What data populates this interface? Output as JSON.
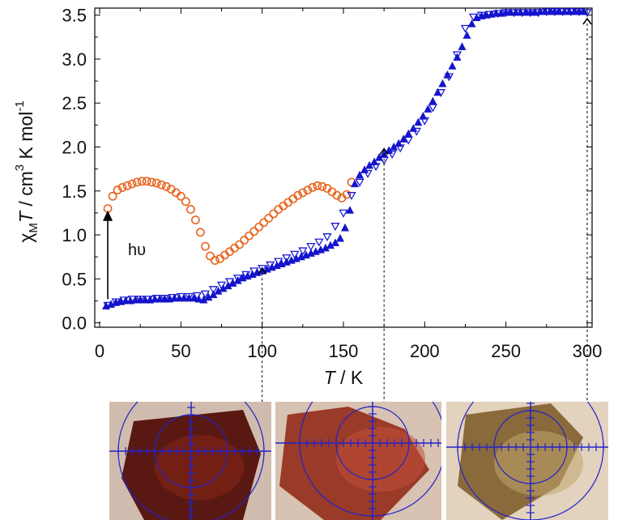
{
  "chart_data": {
    "type": "scatter",
    "xlabel": "T /  K",
    "ylabel_parts": {
      "chi": "χ",
      "sub": "M",
      "t": "T",
      "mid": " / cm",
      "sup": "3",
      "tail": " K mol",
      "sup2": "-1"
    },
    "xlim": [
      -3,
      303
    ],
    "ylim": [
      -0.05,
      3.58
    ],
    "x_ticks": [
      0,
      50,
      100,
      150,
      200,
      250,
      300
    ],
    "y_ticks": [
      0.0,
      0.5,
      1.0,
      1.5,
      2.0,
      2.5,
      3.0,
      3.5
    ],
    "grid": false,
    "series": [
      {
        "marker": "open-circle",
        "color": "#e8641c",
        "x": [
          5,
          8,
          11,
          14,
          17,
          20,
          23,
          26,
          29,
          32,
          35,
          38,
          41,
          44,
          47,
          50,
          53,
          56,
          59,
          62,
          65,
          68,
          71,
          74,
          77,
          80,
          83,
          86,
          89,
          92,
          95,
          98,
          101,
          104,
          107,
          110,
          113,
          116,
          119,
          122,
          125,
          128,
          131,
          134,
          137,
          140,
          143,
          146,
          149,
          152,
          155
        ],
        "y": [
          1.3,
          1.44,
          1.51,
          1.54,
          1.56,
          1.58,
          1.6,
          1.61,
          1.61,
          1.6,
          1.59,
          1.57,
          1.55,
          1.52,
          1.48,
          1.44,
          1.38,
          1.29,
          1.17,
          1.03,
          0.87,
          0.76,
          0.71,
          0.73,
          0.77,
          0.81,
          0.85,
          0.89,
          0.94,
          0.99,
          1.04,
          1.09,
          1.14,
          1.19,
          1.24,
          1.29,
          1.33,
          1.37,
          1.41,
          1.45,
          1.48,
          1.51,
          1.54,
          1.56,
          1.55,
          1.53,
          1.49,
          1.45,
          1.42,
          1.46,
          1.6
        ]
      },
      {
        "marker": "open-down-triangle",
        "color": "#1a1ad8",
        "x": [
          5,
          10,
          15,
          20,
          25,
          30,
          35,
          40,
          45,
          50,
          55,
          60,
          65,
          70,
          75,
          80,
          85,
          90,
          95,
          100,
          105,
          110,
          115,
          120,
          125,
          130,
          135,
          140,
          145,
          150,
          155,
          160,
          165,
          170,
          175,
          180,
          185,
          190,
          195,
          200,
          205,
          210,
          215,
          220,
          225,
          230,
          235,
          240,
          245,
          250,
          255,
          260,
          265,
          270,
          275,
          280,
          285,
          290,
          295,
          300
        ],
        "y": [
          0.2,
          0.24,
          0.26,
          0.27,
          0.27,
          0.27,
          0.28,
          0.28,
          0.29,
          0.3,
          0.3,
          0.31,
          0.33,
          0.38,
          0.43,
          0.47,
          0.51,
          0.55,
          0.59,
          0.62,
          0.66,
          0.7,
          0.74,
          0.78,
          0.82,
          0.87,
          0.92,
          0.98,
          1.1,
          1.25,
          1.45,
          1.6,
          1.7,
          1.78,
          1.85,
          1.92,
          1.99,
          2.08,
          2.18,
          2.3,
          2.45,
          2.62,
          2.8,
          3.05,
          3.35,
          3.48,
          3.5,
          3.51,
          3.52,
          3.53,
          3.53,
          3.53,
          3.53,
          3.53,
          3.54,
          3.54,
          3.54,
          3.54,
          3.54,
          3.53
        ]
      },
      {
        "marker": "filled-triangle",
        "color": "#1414cc",
        "x": [
          4,
          7,
          10,
          13,
          16,
          19,
          22,
          25,
          28,
          31,
          34,
          37,
          40,
          43,
          46,
          49,
          52,
          55,
          58,
          61,
          64,
          67,
          70,
          73,
          76,
          79,
          82,
          85,
          88,
          91,
          94,
          97,
          100,
          103,
          106,
          109,
          112,
          115,
          118,
          121,
          124,
          127,
          130,
          133,
          136,
          139,
          142,
          145,
          148,
          151,
          154,
          157,
          160,
          163,
          166,
          169,
          172,
          175,
          178,
          181,
          184,
          187,
          190,
          193,
          196,
          199,
          202,
          205,
          208,
          211,
          214,
          217,
          220,
          223,
          226,
          229,
          232,
          235,
          238,
          241,
          244,
          247,
          250,
          253,
          256,
          259,
          262,
          265,
          268,
          271,
          274,
          277,
          280,
          283,
          286,
          289,
          292,
          295,
          298
        ],
        "y": [
          0.19,
          0.21,
          0.23,
          0.24,
          0.25,
          0.25,
          0.26,
          0.26,
          0.26,
          0.26,
          0.27,
          0.27,
          0.27,
          0.27,
          0.28,
          0.28,
          0.28,
          0.28,
          0.28,
          0.27,
          0.26,
          0.29,
          0.32,
          0.36,
          0.39,
          0.42,
          0.45,
          0.48,
          0.51,
          0.53,
          0.55,
          0.57,
          0.59,
          0.61,
          0.63,
          0.65,
          0.67,
          0.69,
          0.71,
          0.73,
          0.75,
          0.77,
          0.79,
          0.81,
          0.83,
          0.85,
          0.88,
          0.91,
          0.96,
          1.08,
          1.28,
          1.58,
          1.68,
          1.74,
          1.79,
          1.83,
          1.88,
          1.92,
          1.96,
          2.0,
          2.04,
          2.09,
          2.15,
          2.21,
          2.28,
          2.35,
          2.43,
          2.52,
          2.62,
          2.72,
          2.82,
          2.92,
          3.02,
          3.14,
          3.27,
          3.4,
          3.47,
          3.49,
          3.5,
          3.51,
          3.52,
          3.52,
          3.53,
          3.53,
          3.53,
          3.53,
          3.53,
          3.53,
          3.53,
          3.54,
          3.54,
          3.54,
          3.54,
          3.54,
          3.54,
          3.54,
          3.54,
          3.54,
          3.54
        ]
      }
    ],
    "annotations": {
      "hv_label": "hυ",
      "hv_arrow": {
        "x": 5,
        "y_from": 0.27,
        "y_to": 1.27
      },
      "markers": [
        {
          "x": 100,
          "y": 0.62
        },
        {
          "x": 175,
          "y": 1.98
        },
        {
          "x": 300,
          "y": 3.46
        }
      ]
    }
  },
  "photos": [
    {
      "name": "crystal-photo-100K",
      "tone": "dark-red",
      "bg": "#d0bcae",
      "crystal": "#5a1812",
      "crystal2": "#8a2616"
    },
    {
      "name": "crystal-photo-175K",
      "tone": "red",
      "bg": "#d8c2b2",
      "crystal": "#9a3a28",
      "crystal2": "#c2503a"
    },
    {
      "name": "crystal-photo-300K",
      "tone": "yellow-brown",
      "bg": "#e2d2be",
      "crystal": "#8a6a3a",
      "crystal2": "#c0a46c"
    }
  ]
}
